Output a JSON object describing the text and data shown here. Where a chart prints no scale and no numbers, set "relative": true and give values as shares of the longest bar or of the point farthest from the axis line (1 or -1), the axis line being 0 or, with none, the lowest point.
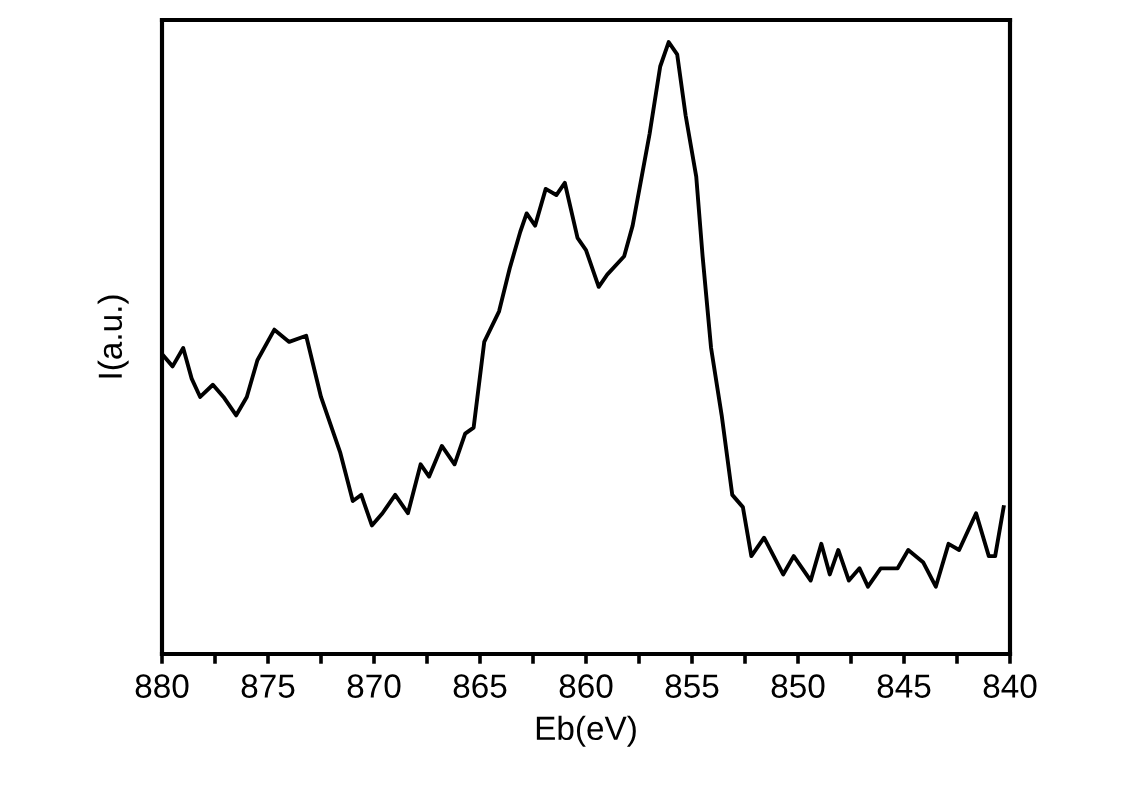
{
  "chart_data": {
    "type": "line",
    "relative": true,
    "xlabel": "Eb(eV)",
    "ylabel": "I(a.u.)",
    "xlim": [
      880,
      840
    ],
    "xticks": [
      880,
      {
        "value": 877.5,
        "label": null
      },
      875,
      {
        "value": 872.5,
        "label": null
      },
      870,
      {
        "value": 867.5,
        "label": null
      },
      865,
      {
        "value": 862.5,
        "label": null
      },
      860,
      {
        "value": 857.5,
        "label": null
      },
      855,
      {
        "value": 852.5,
        "label": null
      },
      850,
      {
        "value": 847.5,
        "label": null
      },
      845,
      {
        "value": 842.5,
        "label": null
      },
      840
    ],
    "grid": false,
    "legend": false,
    "marker": "none",
    "line_style": "solid",
    "series": [
      {
        "color": "#000000",
        "x": [
          880.0,
          879.5,
          879.0,
          878.6,
          878.2,
          877.6,
          877.1,
          876.5,
          876.0,
          875.5,
          874.7,
          874.0,
          873.2,
          872.5,
          871.6,
          871.0,
          870.6,
          870.1,
          869.6,
          869.0,
          868.4,
          867.8,
          867.4,
          866.8,
          866.2,
          865.7,
          865.3,
          864.8,
          864.1,
          863.6,
          863.1,
          862.8,
          862.4,
          861.9,
          861.4,
          861.0,
          860.4,
          860.0,
          859.4,
          859.0,
          858.2,
          857.8,
          857.0,
          856.5,
          856.1,
          855.7,
          855.3,
          854.8,
          854.5,
          854.1,
          853.6,
          853.1,
          852.6,
          852.2,
          851.6,
          850.7,
          850.2,
          849.4,
          848.9,
          848.5,
          848.1,
          847.6,
          847.1,
          846.7,
          846.1,
          845.3,
          844.8,
          844.1,
          843.5,
          842.9,
          842.4,
          841.6,
          841.0,
          840.7,
          840.3
        ],
        "values": [
          0.49,
          0.47,
          0.5,
          0.45,
          0.42,
          0.44,
          0.42,
          0.39,
          0.42,
          0.48,
          0.53,
          0.51,
          0.52,
          0.42,
          0.33,
          0.25,
          0.26,
          0.21,
          0.23,
          0.26,
          0.23,
          0.31,
          0.29,
          0.34,
          0.31,
          0.36,
          0.37,
          0.51,
          0.56,
          0.63,
          0.69,
          0.72,
          0.7,
          0.76,
          0.75,
          0.77,
          0.68,
          0.66,
          0.6,
          0.62,
          0.65,
          0.7,
          0.85,
          0.96,
          1,
          0.98,
          0.88,
          0.78,
          0.65,
          0.5,
          0.39,
          0.26,
          0.24,
          0.16,
          0.19,
          0.13,
          0.16,
          0.12,
          0.18,
          0.13,
          0.17,
          0.12,
          0.14,
          0.11,
          0.14,
          0.14,
          0.17,
          0.15,
          0.11,
          0.18,
          0.17,
          0.23,
          0.16,
          0.16,
          0.24
        ]
      }
    ]
  }
}
